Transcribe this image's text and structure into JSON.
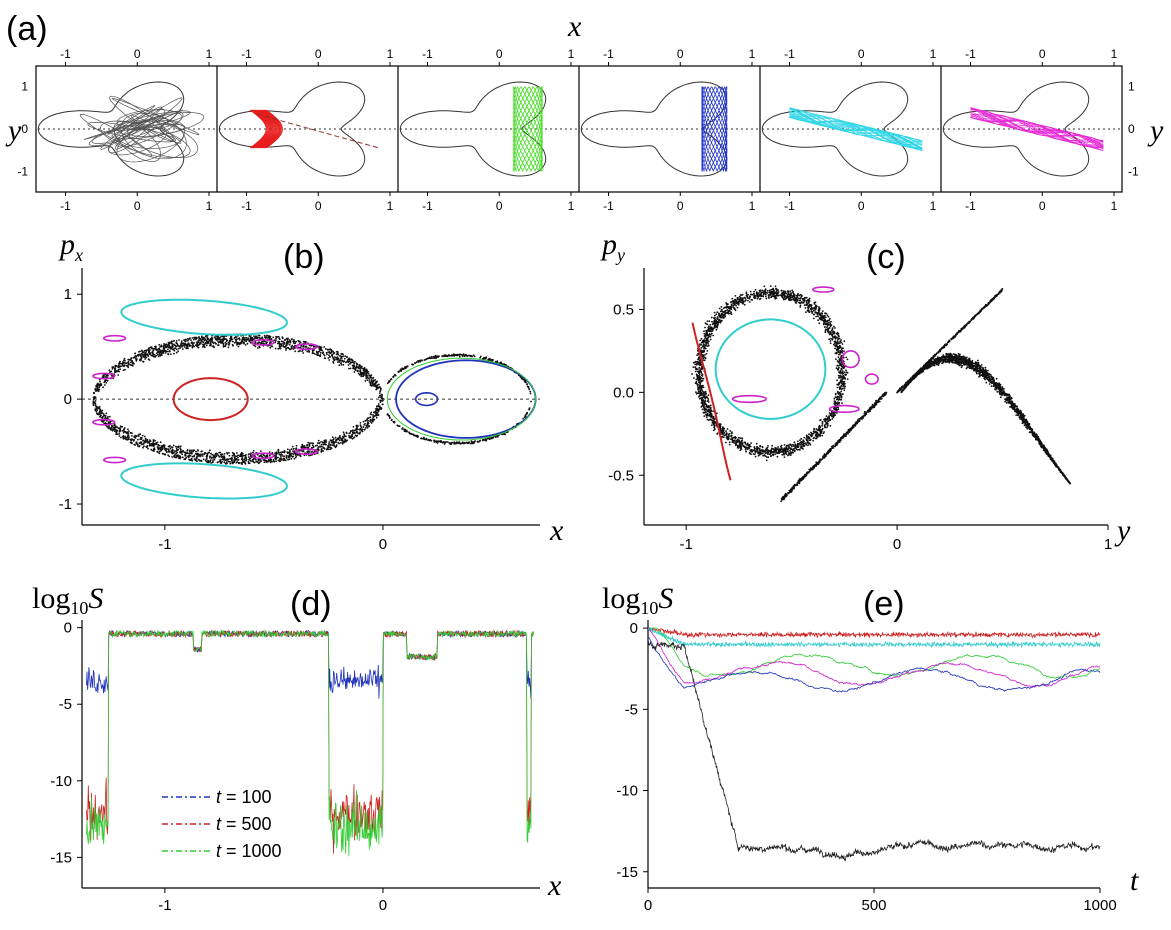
{
  "panels": {
    "a": {
      "label": "(a)",
      "axis_x_label": "x",
      "axis_y_label": "y",
      "tick_labels_x": [
        "-1",
        "0",
        "1"
      ],
      "tick_labels_y": [
        "1",
        "0",
        "-1"
      ],
      "subplots": [
        {
          "orbit_color": "#555555",
          "orbit": "chaotic"
        },
        {
          "orbit_color": "#e81c1c",
          "orbit": "regular"
        },
        {
          "orbit_color": "#44dd22",
          "orbit": "regular"
        },
        {
          "orbit_color": "#2233cc",
          "orbit": "regular"
        },
        {
          "orbit_color": "#33d6e6",
          "orbit": "regular"
        },
        {
          "orbit_color": "#e62ed6",
          "orbit": "sticky"
        }
      ]
    },
    "b": {
      "label": "(b)",
      "xlabel": "x",
      "ylabel_main": "p",
      "ylabel_sub": "x",
      "tick_labels_x": [
        "-1",
        "0"
      ],
      "tick_labels_y": [
        "1",
        "0",
        "-1"
      ]
    },
    "c": {
      "label": "(c)",
      "xlabel": "y",
      "ylabel_main": "p",
      "ylabel_sub": "y",
      "tick_labels_x": [
        "-1",
        "0",
        "1"
      ],
      "tick_labels_y": [
        "0.5",
        "0.0",
        "-0.5"
      ]
    },
    "d": {
      "label": "(d)",
      "xlabel": "x",
      "ylabel_prefix": "log",
      "ylabel_sub": "10",
      "ylabel_var": "S",
      "tick_labels_x": [
        "-1",
        "0"
      ],
      "tick_labels_y": [
        "0",
        "-5",
        "-10",
        "-15"
      ],
      "legend": [
        {
          "var": "t",
          "text": " = 100"
        },
        {
          "var": "t",
          "text": " = 500"
        },
        {
          "var": "t",
          "text": " = 1000"
        }
      ]
    },
    "e": {
      "label": "(e)",
      "xlabel": "t",
      "ylabel_prefix": "log",
      "ylabel_sub": "10",
      "ylabel_var": "S",
      "tick_labels_x": [
        "0",
        "500",
        "1000"
      ],
      "tick_labels_y": [
        "0",
        "-5",
        "-10",
        "-15"
      ]
    }
  },
  "colors": {
    "chaotic": "#111111",
    "red": "#cc2222",
    "cyan": "#33cccc",
    "magenta": "#cc22cc",
    "blue": "#2233bb",
    "green": "#33cc33"
  },
  "chart_data": [
    {
      "panel": "a",
      "type": "scatter",
      "xlim": [
        -1.3,
        1.0
      ],
      "ylim": [
        -1.3,
        1.3
      ],
      "series": [
        {
          "color": "#555555",
          "kind": "chaotic orbit filling potential well"
        },
        {
          "color": "#e81c1c",
          "x_range": [
            -0.95,
            -0.7
          ]
        },
        {
          "color": "#44dd22",
          "x_range": [
            0.2,
            0.6
          ]
        },
        {
          "color": "#2233cc",
          "x_range": [
            0.3,
            0.65
          ]
        },
        {
          "color": "#33d6e6",
          "x_range": [
            -1.0,
            0.8
          ]
        },
        {
          "color": "#e62ed6",
          "x_range": [
            -1.0,
            0.85
          ]
        }
      ]
    },
    {
      "panel": "b",
      "type": "scatter",
      "xlim": [
        -1.38,
        0.72
      ],
      "ylim": [
        -1.2,
        1.25
      ],
      "curves": [
        {
          "color": "#cc2222",
          "center": [
            -0.79,
            0.0
          ],
          "rx": 0.17,
          "ry": 0.2
        },
        {
          "color": "#33cccc",
          "center": [
            -0.8,
            0.78
          ],
          "note": "upper island"
        },
        {
          "color": "#33cccc",
          "center": [
            -0.8,
            -0.78
          ],
          "note": "lower island"
        },
        {
          "color": "#2233bb",
          "center": [
            0.38,
            0.0
          ],
          "rx": 0.32,
          "ry": 0.37
        },
        {
          "color": "#33cc33",
          "center": [
            0.38,
            0.0
          ],
          "note": "near separatrix"
        },
        {
          "color": "#111111",
          "kind": "chaotic sea",
          "x_range": [
            -1.33,
            0.0
          ],
          "p_range": [
            -0.62,
            0.62
          ]
        }
      ]
    },
    {
      "panel": "c",
      "type": "scatter",
      "xlim": [
        -1.2,
        1.0
      ],
      "ylim": [
        -0.8,
        0.75
      ],
      "curves": [
        {
          "color": "#33cccc",
          "center": [
            -0.6,
            0.12
          ],
          "rx": 0.28,
          "ry": 0.32
        },
        {
          "color": "#cc2222",
          "kind": "arc",
          "y_range": [
            -1.0,
            -0.8
          ],
          "p_range": [
            -0.57,
            0.42
          ]
        },
        {
          "color": "#cc22cc",
          "kind": "small islands"
        },
        {
          "color": "#111111",
          "kind": "chaotic sea",
          "y_range": [
            -0.95,
            0.85
          ],
          "p_range": [
            -0.68,
            0.68
          ]
        }
      ]
    },
    {
      "panel": "d",
      "type": "line",
      "xlim": [
        -1.38,
        0.72
      ],
      "ylim": [
        -17,
        0.5
      ],
      "series": [
        {
          "name": "t = 100",
          "color": "#2233bb"
        },
        {
          "name": "t = 500",
          "color": "#cc2222"
        },
        {
          "name": "t = 1000",
          "color": "#33cc33"
        }
      ]
    },
    {
      "panel": "e",
      "type": "line",
      "xlim": [
        0,
        1000
      ],
      "ylim": [
        -16,
        0.5
      ],
      "series": [
        {
          "color": "#cc2222",
          "level": -0.4
        },
        {
          "color": "#33cccc",
          "level": -1.0
        },
        {
          "color": "#33cc33",
          "level": -2.2
        },
        {
          "color": "#cc22cc",
          "level": -2.8
        },
        {
          "color": "#2233bb",
          "level": -3.2
        },
        {
          "color": "#222222",
          "start": -1.0,
          "end": -13.5,
          "drop_t": [
            80,
            200
          ]
        }
      ]
    }
  ]
}
